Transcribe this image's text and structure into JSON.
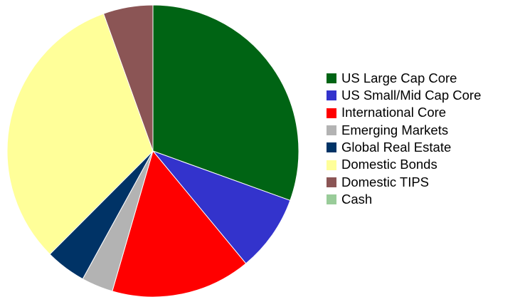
{
  "chart_data": {
    "type": "pie",
    "title": "",
    "legend_position": "right",
    "slices": [
      {
        "label": "US Large Cap Core",
        "value": 30.5,
        "color": "#006414"
      },
      {
        "label": "US Small/Mid Cap Core",
        "value": 8.5,
        "color": "#3333CC"
      },
      {
        "label": "International Core",
        "value": 15.5,
        "color": "#FF0000"
      },
      {
        "label": "Emerging Markets",
        "value": 3.5,
        "color": "#B3B3B3"
      },
      {
        "label": "Global Real Estate",
        "value": 4.5,
        "color": "#003366"
      },
      {
        "label": "Domestic Bonds",
        "value": 32.0,
        "color": "#FFFF99"
      },
      {
        "label": "Domestic TIPS",
        "value": 5.5,
        "color": "#8B5555"
      },
      {
        "label": "Cash",
        "value": 0.0,
        "color": "#99CC99"
      }
    ]
  }
}
